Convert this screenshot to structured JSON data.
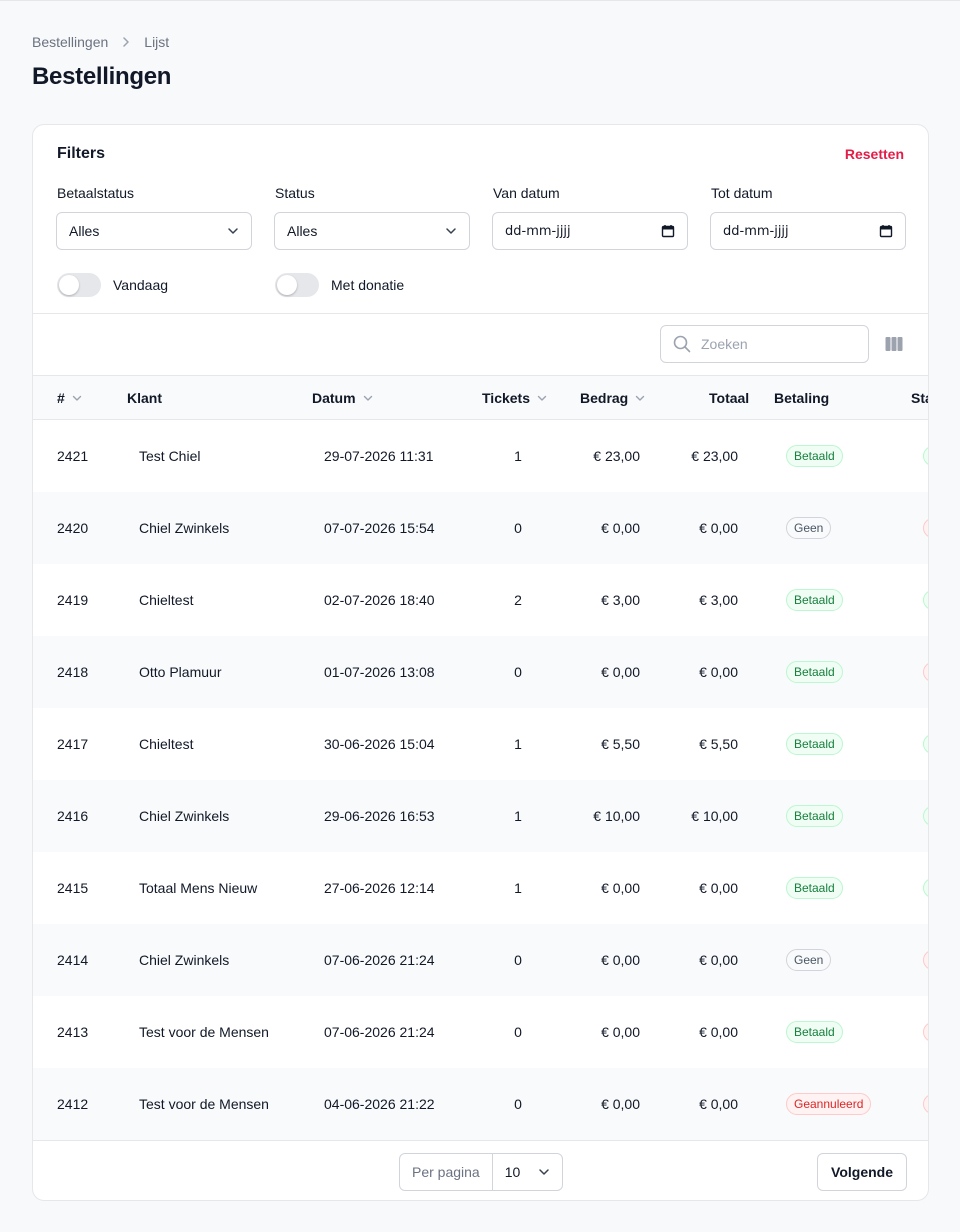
{
  "breadcrumb": {
    "items": [
      "Bestellingen",
      "Lijst"
    ]
  },
  "page": {
    "title": "Bestellingen"
  },
  "filters": {
    "title": "Filters",
    "reset_label": "Resetten",
    "fields": [
      {
        "label": "Betaalstatus",
        "value": "Alles"
      },
      {
        "label": "Status",
        "value": "Alles"
      },
      {
        "label": "Van datum",
        "value": "dd-mm-jjjj"
      },
      {
        "label": "Tot datum",
        "value": "dd-mm-jjjj"
      }
    ],
    "toggles": [
      {
        "label": "Vandaag",
        "on": false
      },
      {
        "label": "Met donatie",
        "on": false
      }
    ]
  },
  "search": {
    "placeholder": "Zoeken"
  },
  "table": {
    "columns": [
      "#",
      "Klant",
      "Datum",
      "Tickets",
      "Bedrag",
      "Totaal",
      "Betaling",
      "Sta"
    ],
    "rows": [
      {
        "id": "2421",
        "customer": "Test Chiel",
        "date": "29-07-2026 11:31",
        "tickets": "1",
        "amount": "€ 23,00",
        "total": "€ 23,00",
        "payment": "Betaald",
        "payment_style": "green",
        "status_style": "green"
      },
      {
        "id": "2420",
        "customer": "Chiel Zwinkels",
        "date": "07-07-2026 15:54",
        "tickets": "0",
        "amount": "€ 0,00",
        "total": "€ 0,00",
        "payment": "Geen",
        "payment_style": "gray",
        "status_style": "red"
      },
      {
        "id": "2419",
        "customer": "Chieltest",
        "date": "02-07-2026 18:40",
        "tickets": "2",
        "amount": "€ 3,00",
        "total": "€ 3,00",
        "payment": "Betaald",
        "payment_style": "green",
        "status_style": "green"
      },
      {
        "id": "2418",
        "customer": "Otto Plamuur",
        "date": "01-07-2026 13:08",
        "tickets": "0",
        "amount": "€ 0,00",
        "total": "€ 0,00",
        "payment": "Betaald",
        "payment_style": "green",
        "status_style": "red"
      },
      {
        "id": "2417",
        "customer": "Chieltest",
        "date": "30-06-2026 15:04",
        "tickets": "1",
        "amount": "€ 5,50",
        "total": "€ 5,50",
        "payment": "Betaald",
        "payment_style": "green",
        "status_style": "green"
      },
      {
        "id": "2416",
        "customer": "Chiel Zwinkels",
        "date": "29-06-2026 16:53",
        "tickets": "1",
        "amount": "€ 10,00",
        "total": "€ 10,00",
        "payment": "Betaald",
        "payment_style": "green",
        "status_style": "green"
      },
      {
        "id": "2415",
        "customer": "Totaal Mens Nieuw",
        "date": "27-06-2026 12:14",
        "tickets": "1",
        "amount": "€ 0,00",
        "total": "€ 0,00",
        "payment": "Betaald",
        "payment_style": "green",
        "status_style": "green"
      },
      {
        "id": "2414",
        "customer": "Chiel Zwinkels",
        "date": "07-06-2026 21:24",
        "tickets": "0",
        "amount": "€ 0,00",
        "total": "€ 0,00",
        "payment": "Geen",
        "payment_style": "gray",
        "status_style": "red"
      },
      {
        "id": "2413",
        "customer": "Test voor de Mensen",
        "date": "07-06-2026 21:24",
        "tickets": "0",
        "amount": "€ 0,00",
        "total": "€ 0,00",
        "payment": "Betaald",
        "payment_style": "green",
        "status_style": "red"
      },
      {
        "id": "2412",
        "customer": "Test voor de Mensen",
        "date": "04-06-2026 21:22",
        "tickets": "0",
        "amount": "€ 0,00",
        "total": "€ 0,00",
        "payment": "Geannuleerd",
        "payment_style": "red",
        "status_style": "red"
      }
    ]
  },
  "pagination": {
    "per_page_label": "Per pagina",
    "per_page_value": "10",
    "next_label": "Volgende"
  },
  "colors": {
    "accent_red": "#e11d48",
    "paid_green": "#15803d",
    "cancelled_red": "#dc2626"
  }
}
